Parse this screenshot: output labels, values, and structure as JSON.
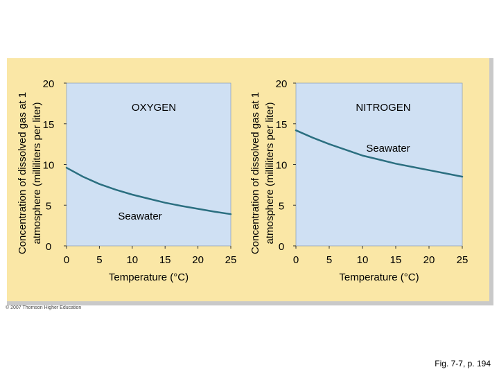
{
  "chart_data": [
    {
      "type": "line",
      "title": "OXYGEN",
      "ylabel_line1": "Concentration of dissolved gas at 1",
      "ylabel_line2": "atmosphere (milliliters per liter)",
      "xlabel": "Temperature (°C)",
      "xlim": [
        0,
        25
      ],
      "ylim": [
        0,
        20
      ],
      "x_ticks": [
        "0",
        "5",
        "10",
        "15",
        "20",
        "25"
      ],
      "y_ticks": [
        "0",
        "5",
        "10",
        "15",
        "20"
      ],
      "series": [
        {
          "name": "Seawater",
          "color": "#2b6f80",
          "x": [
            0,
            2.5,
            5,
            7.5,
            10,
            12.5,
            15,
            17.5,
            20,
            22.5,
            25
          ],
          "y": [
            9.6,
            8.5,
            7.6,
            6.9,
            6.3,
            5.8,
            5.3,
            4.9,
            4.55,
            4.2,
            3.9
          ]
        }
      ]
    },
    {
      "type": "line",
      "title": "NITROGEN",
      "ylabel_line1": "Concentration of dissolved gas at 1",
      "ylabel_line2": "atmosphere (milliliters per liter)",
      "xlabel": "Temperature (°C)",
      "xlim": [
        0,
        25
      ],
      "ylim": [
        0,
        20
      ],
      "x_ticks": [
        "0",
        "5",
        "10",
        "15",
        "20",
        "25"
      ],
      "y_ticks": [
        "0",
        "5",
        "10",
        "15",
        "20"
      ],
      "series": [
        {
          "name": "Seawater",
          "color": "#2b6f80",
          "x": [
            0,
            2.5,
            5,
            7.5,
            10,
            12.5,
            15,
            17.5,
            20,
            22.5,
            25
          ],
          "y": [
            14.2,
            13.3,
            12.5,
            11.8,
            11.1,
            10.6,
            10.1,
            9.7,
            9.3,
            8.9,
            8.5
          ]
        }
      ]
    }
  ],
  "colors": {
    "panel": "#fae7a6",
    "plot_area": "#cfe0f3",
    "curve": "#2b6f80",
    "shadow": "#c9c9c9"
  },
  "credit": "© 2007 Thomson Higher Education",
  "caption": "Fig. 7-7, p. 194"
}
